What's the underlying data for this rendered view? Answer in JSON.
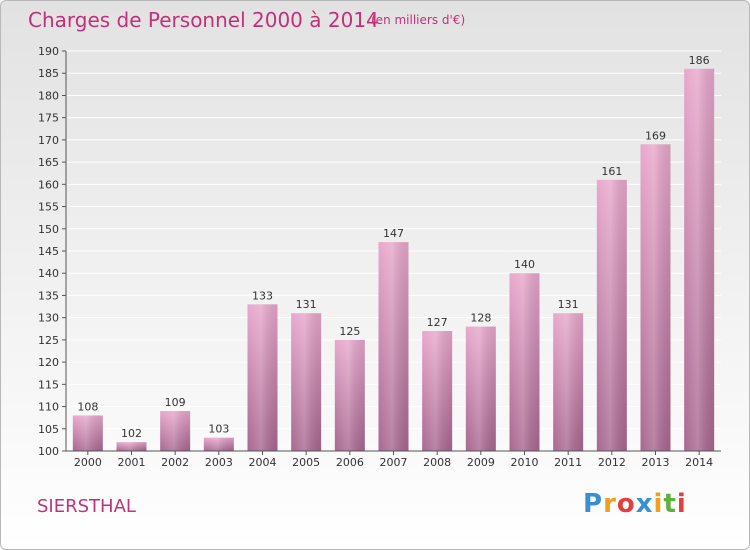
{
  "header": {
    "title": "Charges de Personnel 2000 à 2014",
    "unit_note": "(en milliers d'€)"
  },
  "footer": {
    "commune": "SIERSTHAL",
    "logo_letters": [
      "P",
      "r",
      "o",
      "x",
      "i",
      "t",
      "i"
    ],
    "logo_colors": [
      "#3a8fd0",
      "#f0a020",
      "#e04040",
      "#3a8fd0",
      "#f0a020",
      "#60b040",
      "#e04040"
    ]
  },
  "colors": {
    "bar_top": "#e8a8cc",
    "bar_bottom": "#a86890",
    "axis": "#555555",
    "grid": "#ffffff",
    "accent": "#c2307a"
  },
  "chart_data": {
    "type": "bar",
    "title": "Charges de Personnel 2000 à 2014",
    "subtitle": "(en milliers d'€)",
    "categories": [
      "2000",
      "2001",
      "2002",
      "2003",
      "2004",
      "2005",
      "2006",
      "2007",
      "2008",
      "2009",
      "2010",
      "2011",
      "2012",
      "2013",
      "2014"
    ],
    "values": [
      108,
      102,
      109,
      103,
      133,
      131,
      125,
      147,
      127,
      128,
      140,
      131,
      161,
      169,
      186
    ],
    "ylim": [
      100,
      190
    ],
    "yticks": [
      100,
      105,
      110,
      115,
      120,
      125,
      130,
      135,
      140,
      145,
      150,
      155,
      160,
      165,
      170,
      175,
      180,
      185,
      190
    ],
    "grid": true,
    "data_labels": true
  }
}
